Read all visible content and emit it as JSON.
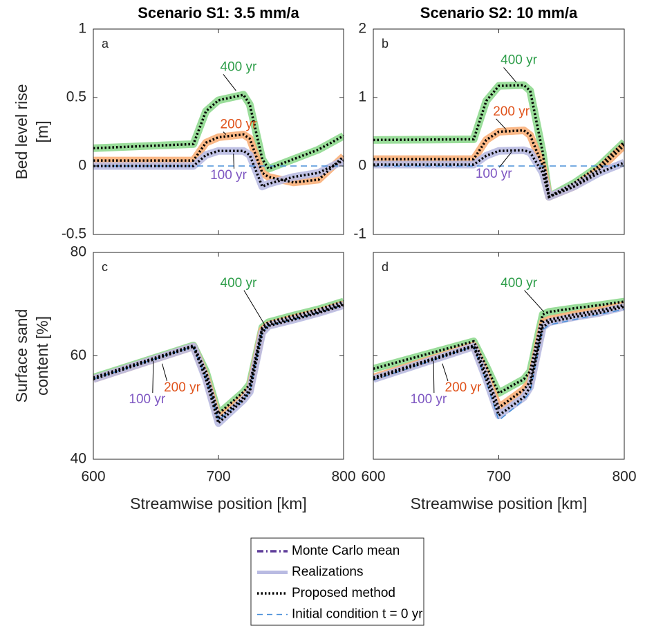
{
  "chart_data": [
    {
      "type": "line",
      "title": "Scenario S1: 3.5 mm/a",
      "panel_label": "a",
      "ylabel": [
        "Bed level rise",
        "[m]"
      ],
      "x": [
        600,
        680,
        690,
        700,
        720,
        725,
        735,
        740,
        760,
        780,
        800
      ],
      "xlim": [
        600,
        800
      ],
      "xticks": [
        600,
        700,
        800
      ],
      "ylim": [
        -0.5,
        1
      ],
      "yticks": [
        -0.5,
        0,
        0.5,
        1
      ],
      "show_ytick_labels": true,
      "series": [
        {
          "name": "400 yr",
          "color": "#8fd98f",
          "label_color": "#2e9e4a",
          "values": [
            0.13,
            0.16,
            0.4,
            0.48,
            0.52,
            0.45,
            0.05,
            -0.02,
            0.05,
            0.12,
            0.22
          ]
        },
        {
          "name": "200 yr",
          "color": "#f9b07a",
          "label_color": "#e0531c",
          "values": [
            0.04,
            0.04,
            0.17,
            0.21,
            0.23,
            0.2,
            -0.05,
            -0.08,
            -0.12,
            -0.1,
            0.07
          ]
        },
        {
          "name": "100 yr",
          "color": "#b9bbe2",
          "label_color": "#7e57c2",
          "values": [
            0,
            0,
            0.08,
            0.11,
            0.11,
            0.08,
            -0.15,
            -0.13,
            -0.08,
            -0.05,
            0.04
          ]
        }
      ],
      "initial": [
        0,
        0,
        0,
        0,
        0,
        0,
        0,
        0,
        0,
        0,
        0
      ]
    },
    {
      "type": "line",
      "title": "Scenario S2: 10 mm/a",
      "panel_label": "b",
      "x": [
        600,
        680,
        690,
        700,
        720,
        725,
        735,
        740,
        760,
        780,
        800
      ],
      "xlim": [
        600,
        800
      ],
      "xticks": [
        600,
        700,
        800
      ],
      "ylim": [
        -1,
        2
      ],
      "yticks": [
        -1,
        0,
        1,
        2
      ],
      "show_ytick_labels": true,
      "series": [
        {
          "name": "400 yr",
          "color": "#8fd98f",
          "label_color": "#2e9e4a",
          "values": [
            0.38,
            0.39,
            0.95,
            1.17,
            1.18,
            1.1,
            0.2,
            -0.45,
            -0.25,
            0,
            0.35
          ]
        },
        {
          "name": "200 yr",
          "color": "#f9b07a",
          "label_color": "#e0531c",
          "values": [
            0.1,
            0.1,
            0.38,
            0.5,
            0.52,
            0.45,
            0,
            -0.45,
            -0.3,
            -0.05,
            0.3
          ]
        },
        {
          "name": "100 yr",
          "color": "#b9bbe2",
          "label_color": "#7e57c2",
          "values": [
            0.02,
            0.02,
            0.15,
            0.22,
            0.23,
            0.2,
            -0.1,
            -0.45,
            -0.3,
            -0.1,
            0.05
          ]
        }
      ],
      "initial": [
        0,
        0,
        0,
        0,
        0,
        0,
        0,
        0,
        0,
        0,
        0
      ]
    },
    {
      "type": "line",
      "panel_label": "c",
      "ylabel": [
        "Surface sand",
        "content [%]"
      ],
      "xlabel": "Streamwise position [km]",
      "x": [
        600,
        680,
        690,
        700,
        720,
        725,
        735,
        740,
        760,
        780,
        800
      ],
      "xlim": [
        600,
        800
      ],
      "xticks": [
        600,
        700,
        800
      ],
      "ylim": [
        40,
        80
      ],
      "yticks": [
        40,
        60,
        80
      ],
      "show_ytick_labels": true,
      "series": [
        {
          "name": "400 yr",
          "color": "#8fd98f",
          "label_color": "#2e9e4a",
          "values": [
            55.8,
            62,
            57,
            48.8,
            53,
            54.5,
            65.5,
            66.5,
            67.8,
            69,
            70.5
          ]
        },
        {
          "name": "200 yr",
          "color": "#f9b07a",
          "label_color": "#e0531c",
          "values": [
            55.5,
            61.8,
            56,
            47.8,
            52,
            53.5,
            65,
            66,
            67.3,
            68.5,
            70
          ]
        },
        {
          "name": "100 yr",
          "color": "#b9bbe2",
          "label_color": "#7e57c2",
          "values": [
            55.5,
            61.8,
            55.5,
            47,
            51.5,
            53,
            64.5,
            65.8,
            67,
            68.3,
            69.8
          ]
        }
      ],
      "initial": [
        55.5,
        61.8,
        55.5,
        47.5,
        51.5,
        53,
        64.5,
        65.8,
        67,
        68.3,
        69.8
      ]
    },
    {
      "type": "line",
      "panel_label": "d",
      "xlabel": "Streamwise position [km]",
      "x": [
        600,
        680,
        690,
        700,
        720,
        725,
        735,
        740,
        760,
        780,
        800
      ],
      "xlim": [
        600,
        800
      ],
      "xticks": [
        600,
        700,
        800
      ],
      "ylim": [
        40,
        80
      ],
      "yticks": [
        40,
        60,
        80
      ],
      "show_ytick_labels": false,
      "series": [
        {
          "name": "400 yr",
          "color": "#8fd98f",
          "label_color": "#2e9e4a",
          "values": [
            57.5,
            62.8,
            58,
            52.8,
            55.5,
            57,
            68,
            68.5,
            69.2,
            69.8,
            70.5
          ]
        },
        {
          "name": "200 yr",
          "color": "#f9b07a",
          "label_color": "#e0531c",
          "values": [
            55.8,
            62,
            56.5,
            50,
            53.5,
            55,
            66.5,
            67,
            68,
            68.8,
            69.8
          ]
        },
        {
          "name": "100 yr",
          "color": "#b9bbe2",
          "label_color": "#7e57c2",
          "values": [
            55.5,
            61.8,
            55.5,
            48.5,
            52,
            54,
            65.5,
            66.5,
            67.5,
            68.3,
            69.5
          ]
        }
      ],
      "initial": [
        55.3,
        61.8,
        55,
        47.5,
        51.5,
        53,
        65,
        66,
        67,
        68,
        69
      ]
    }
  ],
  "legend": [
    {
      "name": "Monte Carlo mean",
      "color": "#5e3c99",
      "style": "dashdot"
    },
    {
      "name": "Realizations",
      "color": "#b9bbe2",
      "style": "solid"
    },
    {
      "name": "Proposed method",
      "color": "#000000",
      "style": "dotted"
    },
    {
      "name": "Initial condition t = 0 yr",
      "color": "#4a90d9",
      "style": "dashed"
    }
  ]
}
